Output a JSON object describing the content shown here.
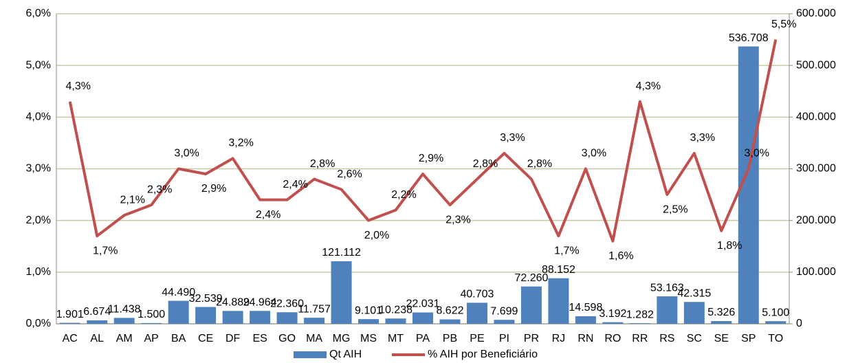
{
  "chart_data": {
    "type": "combo",
    "categories": [
      "AC",
      "AL",
      "AM",
      "AP",
      "BA",
      "CE",
      "DF",
      "ES",
      "GO",
      "MA",
      "MG",
      "MS",
      "MT",
      "PA",
      "PB",
      "PE",
      "PI",
      "PR",
      "RJ",
      "RN",
      "RO",
      "RR",
      "RS",
      "SC",
      "SE",
      "SP",
      "TO"
    ],
    "series": [
      {
        "name": "Qt AIH",
        "type": "bar",
        "axis": "y2",
        "color": "#4f81bd",
        "values": [
          1901,
          6674,
          11438,
          1500,
          44490,
          32539,
          24889,
          24964,
          22360,
          11757,
          121112,
          9101,
          10238,
          22031,
          8622,
          40703,
          7699,
          72260,
          88152,
          14598,
          3192,
          1282,
          53163,
          42315,
          5326,
          536708,
          5100
        ],
        "value_labels": [
          "1.901",
          "6.674",
          "11.438",
          "1.500",
          "44.490",
          "32.539",
          "24.889",
          "24.964",
          "22.360",
          "11.757",
          "121.112",
          "9.101",
          "10.238",
          "22.031",
          "8.622",
          "40.703",
          "7.699",
          "72.260",
          "88.152",
          "14.598",
          "3.192",
          "1.282",
          "53.163",
          "42.315",
          "5.326",
          "536.708",
          "5.100"
        ]
      },
      {
        "name": "% AIH por Beneficiário",
        "type": "line",
        "color": "#c0504d",
        "values": [
          4.3,
          1.7,
          2.1,
          2.3,
          3.0,
          2.9,
          3.2,
          2.4,
          2.4,
          2.8,
          2.6,
          2.0,
          2.2,
          2.9,
          2.3,
          2.8,
          3.3,
          2.8,
          1.7,
          3.0,
          1.6,
          4.3,
          2.5,
          3.3,
          1.8,
          3.0,
          5.5
        ],
        "value_labels": [
          "4,3%",
          "1,7%",
          "2,1%",
          "2,3%",
          "3,0%",
          "2,9%",
          "3,2%",
          "2,4%",
          "2,4%",
          "2,8%",
          "2,6%",
          "2,0%",
          "2,2%",
          "2,9%",
          "2,3%",
          "2,8%",
          "3,3%",
          "2,8%",
          "1,7%",
          "3,0%",
          "1,6%",
          "4,3%",
          "2,5%",
          "3,3%",
          "1,8%",
          "3,0%",
          "5,5%"
        ]
      }
    ],
    "ylim": [
      0,
      6
    ],
    "yticks": [
      {
        "value": 0,
        "label": "0,0%"
      },
      {
        "value": 1,
        "label": "1,0%"
      },
      {
        "value": 2,
        "label": "2,0%"
      },
      {
        "value": 3,
        "label": "3,0%"
      },
      {
        "value": 4,
        "label": "4,0%"
      },
      {
        "value": 5,
        "label": "5,0%"
      },
      {
        "value": 6,
        "label": "6,0%"
      }
    ],
    "y2lim": [
      0,
      600000
    ],
    "y2ticks": [
      0,
      {
        "value": 100000,
        "label": "100.000"
      },
      {
        "value": 200000,
        "label": "200.000"
      },
      {
        "value": 300000,
        "label": "300.000"
      },
      {
        "value": 400000,
        "label": "400.000"
      },
      {
        "value": 500000,
        "label": "500.000"
      },
      {
        "value": 600000,
        "label": "600.000"
      }
    ],
    "grid": true,
    "legend": "bottom"
  }
}
